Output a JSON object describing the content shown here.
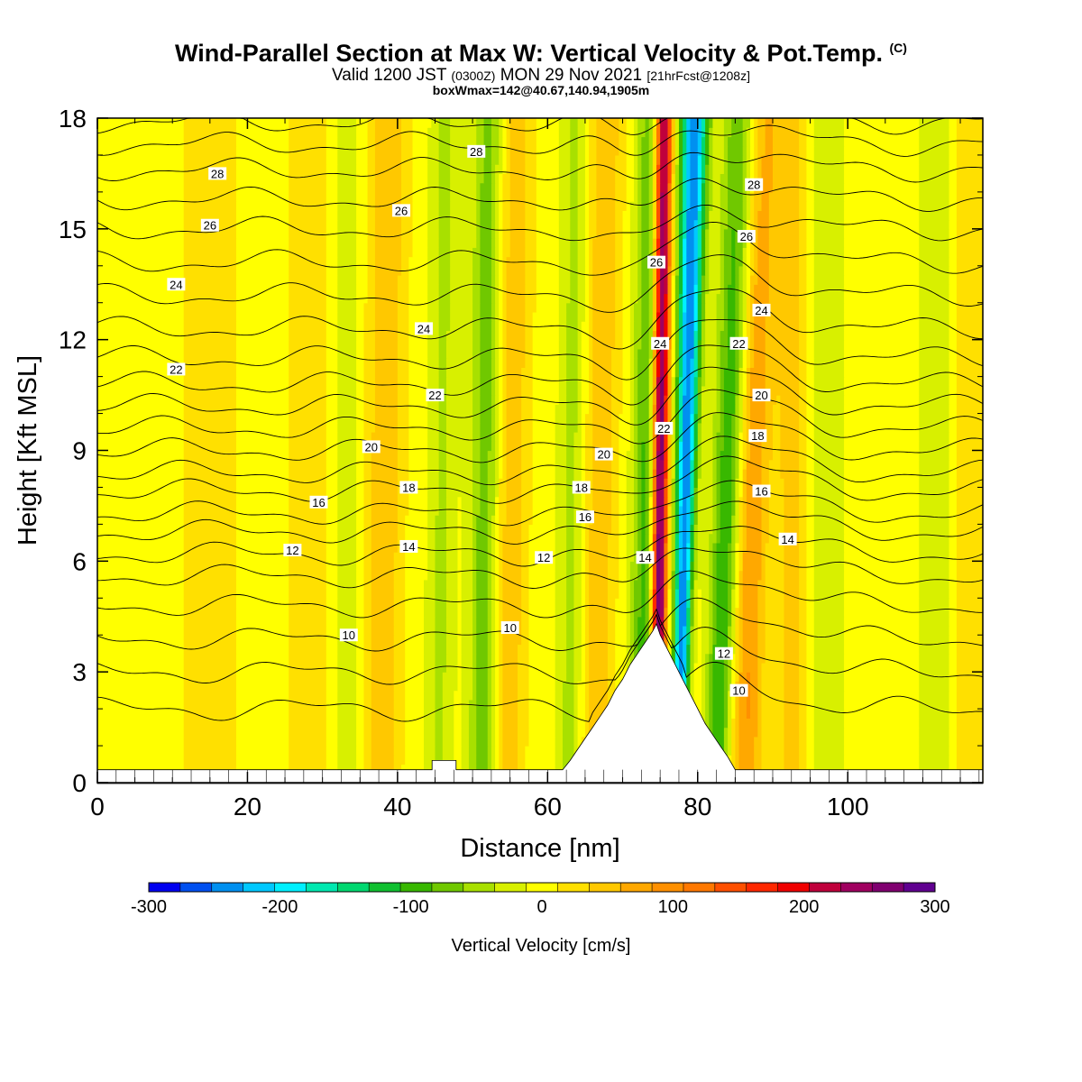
{
  "header": {
    "title_main": "Wind-Parallel Section at Max W: Vertical Velocity & Pot.Temp.",
    "title_mark": "(C)",
    "valid_prefix": "Valid 1200 JST",
    "valid_zulu": "(0300Z)",
    "valid_date": "MON 29 Nov 2021",
    "valid_fcst": "[21hrFcst@1208z]",
    "boxmax": "boxWmax=142@40.67,140.94,1905m"
  },
  "chart_data": {
    "type": "heatmap",
    "xlabel": "Distance [nm]",
    "ylabel": "Height [Kft MSL]",
    "xlim": [
      0,
      118
    ],
    "ylim": [
      0,
      18
    ],
    "x_ticks": [
      0,
      20,
      40,
      60,
      80,
      100
    ],
    "y_ticks": [
      0,
      3,
      6,
      9,
      12,
      15,
      18
    ],
    "colorbar": {
      "label": "Vertical Velocity [cm/s]",
      "min": -300,
      "max": 300,
      "tick_values": [
        -300,
        -200,
        -100,
        0,
        100,
        200,
        300
      ],
      "tick_labels": [
        "-300",
        "-200",
        "-100",
        "0",
        "100",
        "200",
        "300"
      ],
      "colors": [
        "#0000f0",
        "#0050f0",
        "#0090f0",
        "#00c8ff",
        "#00f0ff",
        "#00e8b0",
        "#00d870",
        "#10c030",
        "#38b800",
        "#70c800",
        "#a8e000",
        "#d8f000",
        "#ffff00",
        "#ffe000",
        "#ffc800",
        "#ffa800",
        "#ff9000",
        "#ff7800",
        "#ff5000",
        "#ff2800",
        "#f00000",
        "#c0003c",
        "#a00060",
        "#800070",
        "#600090"
      ]
    },
    "terrain_nm_kft": [
      [
        0,
        0
      ],
      [
        44.6,
        0
      ],
      [
        44.6,
        0.6
      ],
      [
        47.8,
        0.6
      ],
      [
        47.8,
        0
      ],
      [
        62,
        0
      ],
      [
        62,
        0.3
      ],
      [
        63,
        0.6
      ],
      [
        64,
        0.9
      ],
      [
        65,
        1.2
      ],
      [
        66,
        1.5
      ],
      [
        67,
        1.8
      ],
      [
        68,
        2.1
      ],
      [
        69,
        2.5
      ],
      [
        70,
        2.8
      ],
      [
        71,
        3.2
      ],
      [
        72,
        3.5
      ],
      [
        73,
        3.8
      ],
      [
        74,
        4.1
      ],
      [
        74.5,
        4.3
      ],
      [
        75,
        4.0
      ],
      [
        76,
        3.6
      ],
      [
        77,
        3.2
      ],
      [
        78,
        2.8
      ],
      [
        79,
        2.4
      ],
      [
        80,
        2.0
      ],
      [
        81,
        1.6
      ],
      [
        82,
        1.3
      ],
      [
        83,
        1.0
      ],
      [
        84,
        0.7
      ],
      [
        85,
        0.3
      ],
      [
        86,
        0
      ],
      [
        118,
        0
      ]
    ],
    "w_features": [
      {
        "x": 74.8,
        "amp": 300,
        "w0": 0.9,
        "wtop": 1.2,
        "slope": 0.05,
        "y0": 4.5
      },
      {
        "x": 77.8,
        "amp": -250,
        "w0": 0.9,
        "wtop": 1.8,
        "slope": 0.12,
        "y0": 3.2
      },
      {
        "x": 72.5,
        "amp": -95,
        "w0": 1.6,
        "wtop": 2.2,
        "slope": 0.1,
        "y0": 1.0
      },
      {
        "x": 82.5,
        "amp": -110,
        "w0": 1.6,
        "wtop": 2.4,
        "slope": 0.2,
        "y0": 0.5
      },
      {
        "x": 86.5,
        "amp": 85,
        "w0": 2.0,
        "wtop": 2.6,
        "slope": 0.1,
        "y0": 1.0
      },
      {
        "x": 66.5,
        "amp": 55,
        "w0": 2.0,
        "wtop": 2.6,
        "slope": 0.08,
        "y0": 3.0
      },
      {
        "x": 63.0,
        "amp": -45,
        "w0": 1.8,
        "wtop": 2.0,
        "slope": 0.05,
        "y0": 1.5
      },
      {
        "x": 55.0,
        "amp": 55,
        "w0": 2.0,
        "wtop": 2.5,
        "slope": 0.05,
        "y0": 6.0
      },
      {
        "x": 51.5,
        "amp": -75,
        "w0": 1.8,
        "wtop": 2.2,
        "slope": 0.06,
        "y0": 5.0
      },
      {
        "x": 45.5,
        "amp": -40,
        "w0": 1.8,
        "wtop": 2.0,
        "slope": 0.05,
        "y0": 0.0
      },
      {
        "x": 38.0,
        "amp": 55,
        "w0": 2.4,
        "wtop": 2.6,
        "slope": 0.06,
        "y0": 4.0
      },
      {
        "x": 33.0,
        "amp": -30,
        "w0": 2.0,
        "wtop": 2.0,
        "slope": 0.0,
        "y0": 0.0
      },
      {
        "x": 28.5,
        "amp": 28,
        "w0": 3.0,
        "wtop": 3.0,
        "slope": 0.0,
        "y0": 8.0
      },
      {
        "x": 15.0,
        "amp": 20,
        "w0": 5.0,
        "wtop": 5.0,
        "slope": 0.0,
        "y0": 0.0
      },
      {
        "x": 92.5,
        "amp": 45,
        "w0": 2.0,
        "wtop": 2.4,
        "slope": 0.0,
        "y0": 6.0
      },
      {
        "x": 97.0,
        "amp": -28,
        "w0": 2.5,
        "wtop": 2.5,
        "slope": 0.0,
        "y0": 0.0
      },
      {
        "x": 111.5,
        "amp": -35,
        "w0": 2.0,
        "wtop": 2.0,
        "slope": 0.0,
        "y0": 0.0
      },
      {
        "x": 116.0,
        "amp": 28,
        "w0": 2.0,
        "wtop": 2.0,
        "slope": 0.0,
        "y0": 0.0
      }
    ],
    "theta_contours": {
      "levels": [
        8,
        9,
        10,
        11,
        12,
        13,
        14,
        15,
        16,
        17,
        18,
        19,
        20,
        21,
        22,
        23,
        24,
        25,
        26,
        27,
        28,
        29,
        30
      ],
      "heights_kft": [
        2.0,
        3.0,
        3.9,
        4.8,
        5.6,
        6.2,
        6.8,
        7.3,
        7.9,
        8.4,
        9.0,
        9.6,
        10.2,
        10.8,
        11.5,
        12.3,
        13.2,
        14.1,
        15.0,
        15.8,
        16.6,
        17.3,
        17.9
      ],
      "label_points": [
        {
          "label": "28",
          "x": 16,
          "y": 16.5
        },
        {
          "label": "26",
          "x": 15,
          "y": 15.1
        },
        {
          "label": "24",
          "x": 10.5,
          "y": 13.5
        },
        {
          "label": "22",
          "x": 10.5,
          "y": 11.2
        },
        {
          "label": "16",
          "x": 29.5,
          "y": 7.6
        },
        {
          "label": "12",
          "x": 26,
          "y": 6.3
        },
        {
          "label": "10",
          "x": 33.5,
          "y": 4.0
        },
        {
          "label": "28",
          "x": 50.5,
          "y": 17.1
        },
        {
          "label": "26",
          "x": 40.5,
          "y": 15.5
        },
        {
          "label": "24",
          "x": 43.5,
          "y": 12.3
        },
        {
          "label": "22",
          "x": 45,
          "y": 10.5
        },
        {
          "label": "20",
          "x": 36.5,
          "y": 9.1
        },
        {
          "label": "18",
          "x": 41.5,
          "y": 8.0
        },
        {
          "label": "14",
          "x": 41.5,
          "y": 6.4
        },
        {
          "label": "10",
          "x": 55,
          "y": 4.2
        },
        {
          "label": "20",
          "x": 67.5,
          "y": 8.9
        },
        {
          "label": "18",
          "x": 64.5,
          "y": 8.0
        },
        {
          "label": "16",
          "x": 65,
          "y": 7.2
        },
        {
          "label": "12",
          "x": 59.5,
          "y": 6.1
        },
        {
          "label": "14",
          "x": 73,
          "y": 6.1
        },
        {
          "label": "26",
          "x": 74.5,
          "y": 14.1
        },
        {
          "label": "24",
          "x": 75,
          "y": 11.9
        },
        {
          "label": "22",
          "x": 75.5,
          "y": 9.6
        },
        {
          "label": "28",
          "x": 87.5,
          "y": 16.2
        },
        {
          "label": "26",
          "x": 86.5,
          "y": 14.8
        },
        {
          "label": "24",
          "x": 88.5,
          "y": 12.8
        },
        {
          "label": "22",
          "x": 85.5,
          "y": 11.9
        },
        {
          "label": "20",
          "x": 88.5,
          "y": 10.5
        },
        {
          "label": "18",
          "x": 88,
          "y": 9.4
        },
        {
          "label": "16",
          "x": 88.5,
          "y": 7.9
        },
        {
          "label": "14",
          "x": 92,
          "y": 6.6
        },
        {
          "label": "12",
          "x": 83.5,
          "y": 3.5
        },
        {
          "label": "10",
          "x": 85.5,
          "y": 2.5
        }
      ]
    }
  }
}
